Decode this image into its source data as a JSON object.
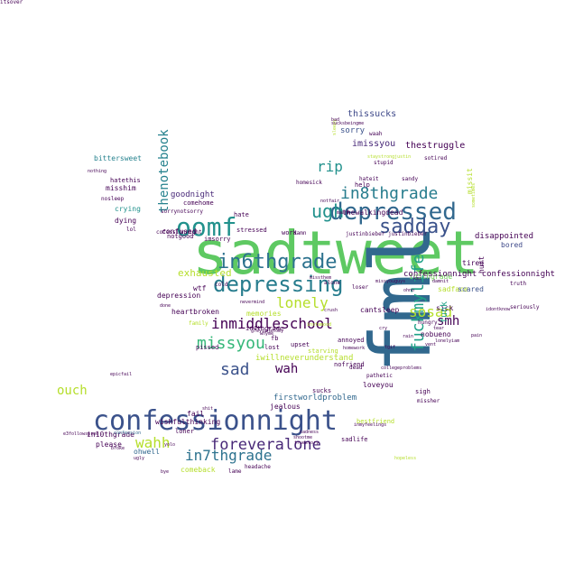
{
  "words": [
    {
      "text": "sadtweet",
      "color": "#5ec962"
    },
    {
      "text": "fml",
      "color": "#31688e"
    },
    {
      "text": "confessionnight",
      "color": "#3b528b"
    },
    {
      "text": "depressed",
      "color": "#31688e"
    },
    {
      "text": "depressing",
      "color": "#287d8e"
    },
    {
      "text": "oomf",
      "color": "#21918c"
    },
    {
      "text": "sadday",
      "color": "#3b528b"
    },
    {
      "text": "in6thgrade",
      "color": "#2c728e"
    },
    {
      "text": "inmiddleschool",
      "color": "#440154"
    },
    {
      "text": "missyou",
      "color": "#35b779"
    },
    {
      "text": "sad",
      "color": "#3b528b"
    },
    {
      "text": "wah",
      "color": "#440154"
    },
    {
      "text": "foreveralone",
      "color": "#482878"
    },
    {
      "text": "in7thgrade",
      "color": "#2c728e"
    },
    {
      "text": "wahh",
      "color": "#b5de2b"
    },
    {
      "text": "fuckmylife",
      "color": "#1fa187"
    },
    {
      "text": "ugh",
      "color": "#21918c"
    },
    {
      "text": "in8thgrade",
      "color": "#287d8e"
    },
    {
      "text": "rip",
      "color": "#21918c"
    },
    {
      "text": "sosad",
      "color": "#b5de2b"
    },
    {
      "text": "lonely",
      "color": "#b5de2b"
    },
    {
      "text": "thenotebook",
      "color": "#26828e"
    },
    {
      "text": "smh",
      "color": "#440154"
    },
    {
      "text": "ouch",
      "color": "#b5de2b"
    },
    {
      "text": "exhausted",
      "color": "#b5de2b"
    },
    {
      "text": "imissyou",
      "color": "#482878"
    },
    {
      "text": "thestruggle",
      "color": "#440154"
    },
    {
      "text": "thewalkingdead",
      "color": "#440154"
    },
    {
      "text": "in5thgrade",
      "color": "#6ece58"
    },
    {
      "text": "confessionnight confessionnight",
      "color": "#440154"
    },
    {
      "text": "thissucks",
      "color": "#3e4989"
    },
    {
      "text": "sorry",
      "color": "#3b528b"
    },
    {
      "text": "disappointed",
      "color": "#440154"
    },
    {
      "text": "bored",
      "color": "#3e4989"
    },
    {
      "text": "sadface",
      "color": "#b5de2b"
    },
    {
      "text": "scared",
      "color": "#3b528b"
    },
    {
      "text": "sick",
      "color": "#440154"
    },
    {
      "text": "tired",
      "color": "#440154"
    },
    {
      "text": "hurt",
      "color": "#440154"
    },
    {
      "text": "missit",
      "color": "#b5de2b"
    },
    {
      "text": "funk",
      "color": "#1fa187"
    },
    {
      "text": "goodnight",
      "color": "#482878"
    },
    {
      "text": "misshim",
      "color": "#440154"
    },
    {
      "text": "bittersweet",
      "color": "#26828e"
    },
    {
      "text": "hatethis",
      "color": "#440154"
    },
    {
      "text": "crying",
      "color": "#21918c"
    },
    {
      "text": "dying",
      "color": "#440154"
    },
    {
      "text": "confused",
      "color": "#440154"
    },
    {
      "text": "notgood",
      "color": "#440154"
    },
    {
      "text": "comehome",
      "color": "#440154"
    },
    {
      "text": "sorrynotsorry",
      "color": "#440154"
    },
    {
      "text": "hate",
      "color": "#440154"
    },
    {
      "text": "imsorry",
      "color": "#440154"
    },
    {
      "text": "stressed",
      "color": "#440154"
    },
    {
      "text": "wtf",
      "color": "#440154"
    },
    {
      "text": "depression",
      "color": "#440154"
    },
    {
      "text": "heartbroken",
      "color": "#440154"
    },
    {
      "text": "memories",
      "color": "#b5de2b"
    },
    {
      "text": "in4thgrade",
      "color": "#440154"
    },
    {
      "text": "cantsleep",
      "color": "#440154"
    },
    {
      "text": "nobueno",
      "color": "#440154"
    },
    {
      "text": "annoyed",
      "color": "#440154"
    },
    {
      "text": "iwillneverunderstand",
      "color": "#b5de2b"
    },
    {
      "text": "upset",
      "color": "#440154"
    },
    {
      "text": "pissed",
      "color": "#440154"
    },
    {
      "text": "fb",
      "color": "#440154"
    },
    {
      "text": "lost",
      "color": "#440154"
    },
    {
      "text": "starving",
      "color": "#b5de2b"
    },
    {
      "text": "nofriend",
      "color": "#440154"
    },
    {
      "text": "loveyou",
      "color": "#440154"
    },
    {
      "text": "jealous",
      "color": "#440154"
    },
    {
      "text": "sucks",
      "color": "#440154"
    },
    {
      "text": "firstworldproblem",
      "color": "#31688e"
    },
    {
      "text": "wishfulthinking",
      "color": "#440154"
    },
    {
      "text": "bestfriend",
      "color": "#b5de2b"
    },
    {
      "text": "in10thgrade",
      "color": "#440154"
    },
    {
      "text": "ohwell",
      "color": "#31688e"
    },
    {
      "text": "please",
      "color": "#440154"
    },
    {
      "text": "fail",
      "color": "#440154"
    },
    {
      "text": "loner",
      "color": "#440154"
    },
    {
      "text": "comeback",
      "color": "#b5de2b"
    },
    {
      "text": "lame",
      "color": "#440154"
    },
    {
      "text": "headache",
      "color": "#440154"
    },
    {
      "text": "sadlife",
      "color": "#440154"
    },
    {
      "text": "sigh",
      "color": "#440154"
    },
    {
      "text": "work",
      "color": "#440154"
    },
    {
      "text": "damn",
      "color": "#440154"
    },
    {
      "text": "cold",
      "color": "#440154"
    },
    {
      "text": "truth",
      "color": "#440154"
    },
    {
      "text": "seriously",
      "color": "#440154"
    },
    {
      "text": "hungry",
      "color": "#440154"
    },
    {
      "text": "alone",
      "color": "#440154"
    },
    {
      "text": "loser",
      "color": "#440154"
    },
    {
      "text": "help",
      "color": "#440154"
    },
    {
      "text": "hateit",
      "color": "#440154"
    },
    {
      "text": "sandy",
      "color": "#440154"
    },
    {
      "text": "homesick",
      "color": "#440154"
    },
    {
      "text": "justinbieber justinbieber",
      "color": "#440154"
    },
    {
      "text": "stupid",
      "color": "#440154"
    },
    {
      "text": "sotired",
      "color": "#440154"
    },
    {
      "text": "family",
      "color": "#b5de2b"
    },
    {
      "text": "cofessionnight",
      "color": "#440154"
    },
    {
      "text": "done",
      "color": "#440154"
    },
    {
      "text": "tear",
      "color": "#440154"
    },
    {
      "text": "pathetic",
      "color": "#440154"
    },
    {
      "text": "confession",
      "color": "#31688e"
    },
    {
      "text": "epicfail",
      "color": "#440154"
    },
    {
      "text": "nosleep",
      "color": "#440154"
    },
    {
      "text": "lol",
      "color": "#440154"
    },
    {
      "text": "missher",
      "color": "#440154"
    },
    {
      "text": "shootme",
      "color": "#440154"
    },
    {
      "text": "dead",
      "color": "#440154"
    },
    {
      "text": "waah",
      "color": "#440154"
    },
    {
      "text": "sleepy",
      "color": "#b5de2b"
    },
    {
      "text": "hopeless",
      "color": "#b5de2b"
    },
    {
      "text": "sometimes",
      "color": "#b5de2b"
    },
    {
      "text": "pain",
      "color": "#440154"
    },
    {
      "text": "truestory",
      "color": "#440154"
    },
    {
      "text": "notfair",
      "color": "#440154"
    },
    {
      "text": "maanh",
      "color": "#440154"
    },
    {
      "text": "e3followspree",
      "color": "#440154"
    },
    {
      "text": "broke",
      "color": "#440154"
    },
    {
      "text": "damnit",
      "color": "#440154"
    },
    {
      "text": "nothing",
      "color": "#440154"
    },
    {
      "text": "missyouguys",
      "color": "#440154"
    },
    {
      "text": "ohno",
      "color": "#440154"
    },
    {
      "text": "bad",
      "color": "#440154"
    },
    {
      "text": "sucksbeingme",
      "color": "#440154"
    },
    {
      "text": "staystrongjustin",
      "color": "#b5de2b"
    },
    {
      "text": "collegeproblems",
      "color": "#440154"
    },
    {
      "text": "homework",
      "color": "#440154"
    },
    {
      "text": "shit",
      "color": "#440154"
    },
    {
      "text": "whyme",
      "color": "#440154"
    },
    {
      "text": "nevermind",
      "color": "#440154"
    },
    {
      "text": "greysanatomy",
      "color": "#440154"
    },
    {
      "text": "inmyfeelings",
      "color": "#440154"
    },
    {
      "text": "sadness",
      "color": "#440154"
    },
    {
      "text": "lonelyiam",
      "color": "#440154"
    },
    {
      "text": "missthem",
      "color": "#440154"
    },
    {
      "text": "idontknow",
      "color": "#440154"
    },
    {
      "text": "bye",
      "color": "#440154"
    },
    {
      "text": "yolo",
      "color": "#440154"
    },
    {
      "text": "ugly",
      "color": "#440154"
    },
    {
      "text": "tgif",
      "color": "#440154"
    },
    {
      "text": "instamood",
      "color": "#b5de2b"
    },
    {
      "text": "rain",
      "color": "#440154"
    },
    {
      "text": "cry",
      "color": "#440154"
    },
    {
      "text": "vent",
      "color": "#440154"
    },
    {
      "text": "kms",
      "color": "#440154"
    },
    {
      "text": "crush",
      "color": "#440154"
    },
    {
      "text": "itsover",
      "color": "#440154"
    }
  ]
}
